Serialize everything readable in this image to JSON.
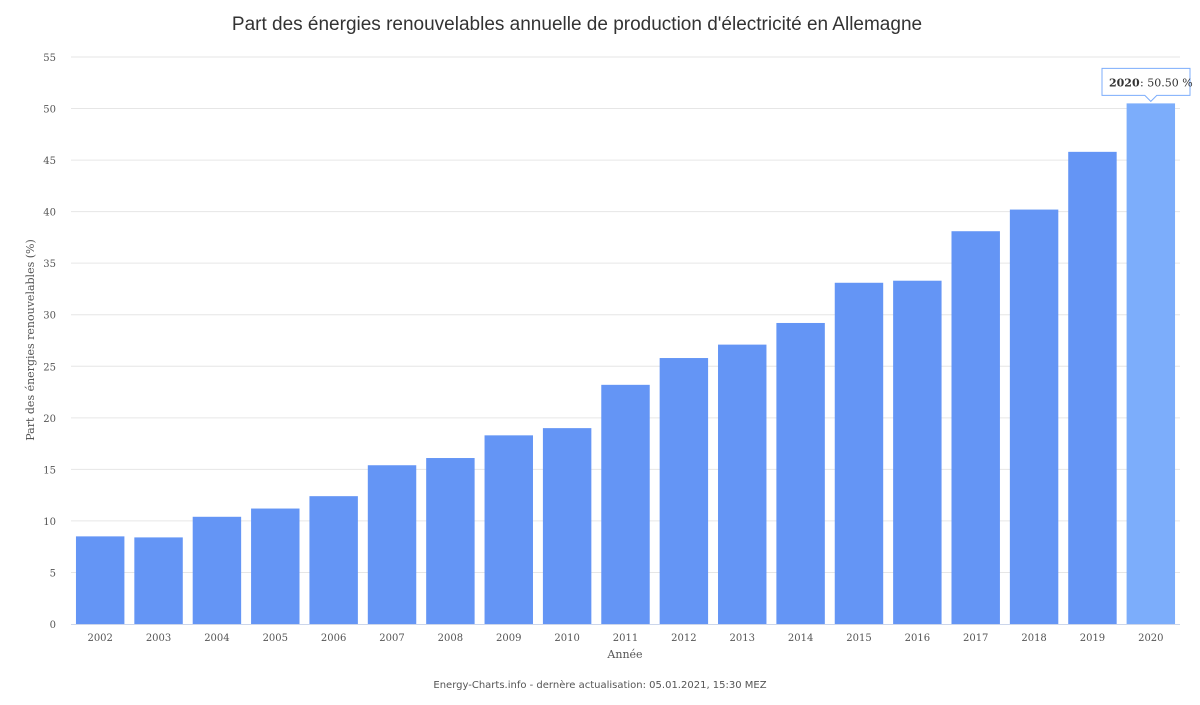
{
  "chart_data": {
    "type": "bar",
    "title": "Part des énergies renouvelables annuelle de production d'électricité en Allemagne",
    "xlabel": "Année",
    "ylabel": "Part des énergies renouvelables (%)",
    "ylim": [
      0,
      55
    ],
    "yticks": [
      0,
      5,
      10,
      15,
      20,
      25,
      30,
      35,
      40,
      45,
      50,
      55
    ],
    "grid": true,
    "categories": [
      "2002",
      "2003",
      "2004",
      "2005",
      "2006",
      "2007",
      "2008",
      "2009",
      "2010",
      "2011",
      "2012",
      "2013",
      "2014",
      "2015",
      "2016",
      "2017",
      "2018",
      "2019",
      "2020"
    ],
    "values": [
      8.5,
      8.4,
      10.4,
      11.2,
      12.4,
      15.4,
      16.1,
      18.3,
      19.0,
      23.2,
      25.8,
      27.1,
      29.2,
      33.1,
      33.3,
      38.1,
      40.2,
      45.8,
      50.5
    ],
    "colors": {
      "bar": "#6495f5",
      "highlight": "#7cadfb",
      "tooltip_border": "#7cadfb"
    },
    "highlighted_index": 18,
    "tooltip": {
      "label": "2020",
      "value": "50.50 %"
    },
    "credit": "Energy-Charts.info - dernère actualisation: 05.01.2021, 15:30 MEZ"
  }
}
